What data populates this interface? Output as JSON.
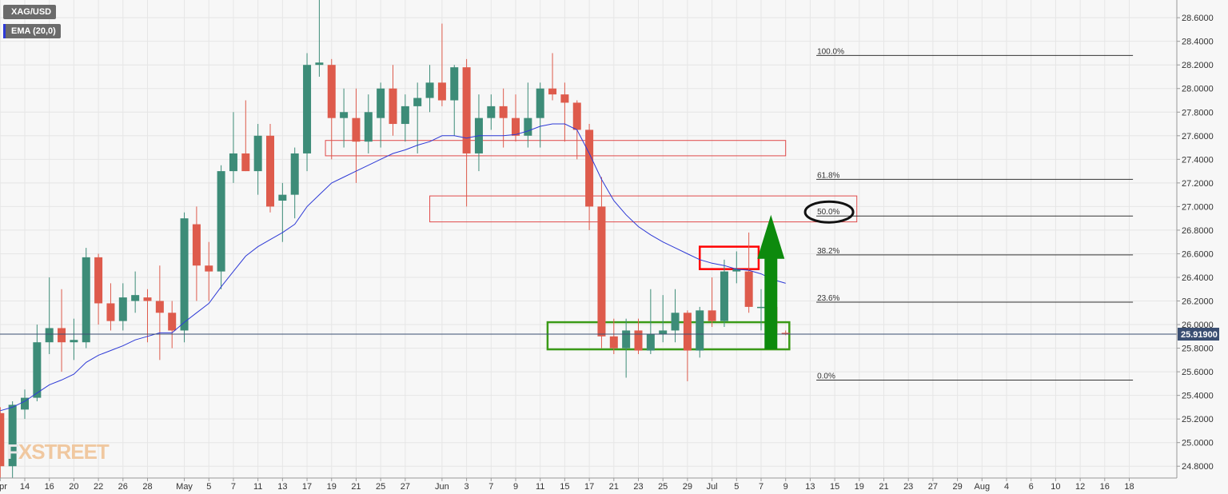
{
  "legend": {
    "symbol": "XAG/USD",
    "indicator": "EMA (20,0)"
  },
  "watermark": "FXSTREET",
  "chart_data": {
    "type": "candlestick",
    "symbol": "XAG/USD",
    "ylim": [
      24.7,
      28.75
    ],
    "y_ticks": [
      "28.6000",
      "28.4000",
      "28.2000",
      "28.0000",
      "27.8000",
      "27.6000",
      "27.4000",
      "27.2000",
      "27.0000",
      "26.8000",
      "26.6000",
      "26.4000",
      "26.2000",
      "26.0000",
      "25.8000",
      "25.6000",
      "25.4000",
      "25.2000",
      "25.0000",
      "24.8000"
    ],
    "x_ticks": [
      {
        "i": 0,
        "label": "Apr"
      },
      {
        "i": 2,
        "label": "14"
      },
      {
        "i": 4,
        "label": "16"
      },
      {
        "i": 6,
        "label": "20"
      },
      {
        "i": 8,
        "label": "22"
      },
      {
        "i": 10,
        "label": "26"
      },
      {
        "i": 12,
        "label": "28"
      },
      {
        "i": 15,
        "label": "May"
      },
      {
        "i": 17,
        "label": "5"
      },
      {
        "i": 19,
        "label": "7"
      },
      {
        "i": 21,
        "label": "11"
      },
      {
        "i": 23,
        "label": "13"
      },
      {
        "i": 25,
        "label": "17"
      },
      {
        "i": 27,
        "label": "19"
      },
      {
        "i": 29,
        "label": "21"
      },
      {
        "i": 31,
        "label": "25"
      },
      {
        "i": 33,
        "label": "27"
      },
      {
        "i": 36,
        "label": "Jun"
      },
      {
        "i": 38,
        "label": "3"
      },
      {
        "i": 40,
        "label": "7"
      },
      {
        "i": 42,
        "label": "9"
      },
      {
        "i": 44,
        "label": "11"
      },
      {
        "i": 46,
        "label": "15"
      },
      {
        "i": 48,
        "label": "17"
      },
      {
        "i": 50,
        "label": "21"
      },
      {
        "i": 52,
        "label": "23"
      },
      {
        "i": 54,
        "label": "25"
      },
      {
        "i": 56,
        "label": "29"
      },
      {
        "i": 58,
        "label": "Jul"
      },
      {
        "i": 60,
        "label": "5"
      },
      {
        "i": 62,
        "label": "7"
      },
      {
        "i": 64,
        "label": "9"
      },
      {
        "i": 66,
        "label": "13"
      },
      {
        "i": 68,
        "label": "15"
      },
      {
        "i": 70,
        "label": "19"
      },
      {
        "i": 72,
        "label": "21"
      },
      {
        "i": 74,
        "label": "23"
      },
      {
        "i": 76,
        "label": "27"
      },
      {
        "i": 78,
        "label": "29"
      },
      {
        "i": 80,
        "label": "Aug"
      },
      {
        "i": 82,
        "label": "4"
      },
      {
        "i": 84,
        "label": "6"
      },
      {
        "i": 86,
        "label": "10"
      },
      {
        "i": 88,
        "label": "12"
      },
      {
        "i": 90,
        "label": "16"
      },
      {
        "i": 92,
        "label": "18"
      }
    ],
    "candles": [
      {
        "i": 0,
        "o": 25.25,
        "h": 25.3,
        "l": 24.7,
        "c": 24.8
      },
      {
        "i": 1,
        "o": 24.8,
        "h": 25.35,
        "l": 24.7,
        "c": 25.32
      },
      {
        "i": 2,
        "o": 25.28,
        "h": 25.45,
        "l": 25.2,
        "c": 25.38
      },
      {
        "i": 3,
        "o": 25.38,
        "h": 26.0,
        "l": 25.35,
        "c": 25.85
      },
      {
        "i": 4,
        "o": 25.85,
        "h": 26.4,
        "l": 25.75,
        "c": 25.97
      },
      {
        "i": 5,
        "o": 25.97,
        "h": 26.3,
        "l": 25.6,
        "c": 25.85
      },
      {
        "i": 6,
        "o": 25.85,
        "h": 26.05,
        "l": 25.7,
        "c": 25.87
      },
      {
        "i": 7,
        "o": 25.85,
        "h": 26.65,
        "l": 25.8,
        "c": 26.57
      },
      {
        "i": 8,
        "o": 26.57,
        "h": 26.6,
        "l": 26.0,
        "c": 26.18
      },
      {
        "i": 9,
        "o": 26.18,
        "h": 26.35,
        "l": 25.95,
        "c": 26.03
      },
      {
        "i": 10,
        "o": 26.03,
        "h": 26.35,
        "l": 25.95,
        "c": 26.23
      },
      {
        "i": 11,
        "o": 26.2,
        "h": 26.45,
        "l": 26.1,
        "c": 26.25
      },
      {
        "i": 12,
        "o": 26.23,
        "h": 26.3,
        "l": 25.85,
        "c": 26.2
      },
      {
        "i": 13,
        "o": 26.2,
        "h": 26.5,
        "l": 25.7,
        "c": 26.1
      },
      {
        "i": 14,
        "o": 26.1,
        "h": 26.2,
        "l": 25.8,
        "c": 25.95
      },
      {
        "i": 15,
        "o": 25.95,
        "h": 26.95,
        "l": 25.85,
        "c": 26.9
      },
      {
        "i": 16,
        "o": 26.85,
        "h": 27.0,
        "l": 26.2,
        "c": 26.5
      },
      {
        "i": 17,
        "o": 26.5,
        "h": 26.7,
        "l": 26.2,
        "c": 26.45
      },
      {
        "i": 18,
        "o": 26.45,
        "h": 27.35,
        "l": 26.3,
        "c": 27.3
      },
      {
        "i": 19,
        "o": 27.3,
        "h": 27.8,
        "l": 27.2,
        "c": 27.45
      },
      {
        "i": 20,
        "o": 27.45,
        "h": 27.9,
        "l": 27.3,
        "c": 27.3
      },
      {
        "i": 21,
        "o": 27.3,
        "h": 27.7,
        "l": 27.1,
        "c": 27.6
      },
      {
        "i": 22,
        "o": 27.6,
        "h": 27.7,
        "l": 26.95,
        "c": 27.0
      },
      {
        "i": 23,
        "o": 27.05,
        "h": 27.2,
        "l": 26.7,
        "c": 27.1
      },
      {
        "i": 24,
        "o": 27.1,
        "h": 27.5,
        "l": 26.9,
        "c": 27.45
      },
      {
        "i": 25,
        "o": 27.45,
        "h": 28.3,
        "l": 27.3,
        "c": 28.2
      },
      {
        "i": 26,
        "o": 28.2,
        "h": 28.75,
        "l": 28.1,
        "c": 28.22
      },
      {
        "i": 27,
        "o": 28.2,
        "h": 28.25,
        "l": 27.4,
        "c": 27.75
      },
      {
        "i": 28,
        "o": 27.75,
        "h": 28.0,
        "l": 27.5,
        "c": 27.8
      },
      {
        "i": 29,
        "o": 27.75,
        "h": 28.0,
        "l": 27.2,
        "c": 27.55
      },
      {
        "i": 30,
        "o": 27.55,
        "h": 27.95,
        "l": 27.45,
        "c": 27.8
      },
      {
        "i": 31,
        "o": 27.75,
        "h": 28.05,
        "l": 27.5,
        "c": 28.0
      },
      {
        "i": 32,
        "o": 28.0,
        "h": 28.2,
        "l": 27.6,
        "c": 27.7
      },
      {
        "i": 33,
        "o": 27.7,
        "h": 27.95,
        "l": 27.55,
        "c": 27.85
      },
      {
        "i": 34,
        "o": 27.85,
        "h": 28.05,
        "l": 27.45,
        "c": 27.92
      },
      {
        "i": 35,
        "o": 27.92,
        "h": 28.2,
        "l": 27.8,
        "c": 28.05
      },
      {
        "i": 36,
        "o": 28.05,
        "h": 28.55,
        "l": 27.85,
        "c": 27.9
      },
      {
        "i": 37,
        "o": 27.9,
        "h": 28.2,
        "l": 27.6,
        "c": 28.18
      },
      {
        "i": 38,
        "o": 28.18,
        "h": 28.25,
        "l": 27.0,
        "c": 27.45
      },
      {
        "i": 39,
        "o": 27.45,
        "h": 27.95,
        "l": 27.3,
        "c": 27.75
      },
      {
        "i": 40,
        "o": 27.75,
        "h": 27.95,
        "l": 27.65,
        "c": 27.85
      },
      {
        "i": 41,
        "o": 27.85,
        "h": 28.0,
        "l": 27.5,
        "c": 27.75
      },
      {
        "i": 42,
        "o": 27.75,
        "h": 27.95,
        "l": 27.55,
        "c": 27.6
      },
      {
        "i": 43,
        "o": 27.6,
        "h": 28.05,
        "l": 27.5,
        "c": 27.75
      },
      {
        "i": 44,
        "o": 27.75,
        "h": 28.05,
        "l": 27.5,
        "c": 28.0
      },
      {
        "i": 45,
        "o": 28.0,
        "h": 28.3,
        "l": 27.9,
        "c": 27.95
      },
      {
        "i": 46,
        "o": 27.95,
        "h": 28.05,
        "l": 27.55,
        "c": 27.88
      },
      {
        "i": 47,
        "o": 27.88,
        "h": 27.9,
        "l": 27.4,
        "c": 27.65
      },
      {
        "i": 48,
        "o": 27.65,
        "h": 27.7,
        "l": 26.8,
        "c": 27.0
      },
      {
        "i": 49,
        "o": 27.0,
        "h": 27.25,
        "l": 25.8,
        "c": 25.9
      },
      {
        "i": 50,
        "o": 25.9,
        "h": 26.05,
        "l": 25.75,
        "c": 25.8
      },
      {
        "i": 51,
        "o": 25.8,
        "h": 26.05,
        "l": 25.55,
        "c": 25.95
      },
      {
        "i": 52,
        "o": 25.95,
        "h": 26.05,
        "l": 25.75,
        "c": 25.78
      },
      {
        "i": 53,
        "o": 25.78,
        "h": 26.3,
        "l": 25.75,
        "c": 25.92
      },
      {
        "i": 54,
        "o": 25.92,
        "h": 26.25,
        "l": 25.85,
        "c": 25.95
      },
      {
        "i": 55,
        "o": 25.95,
        "h": 26.3,
        "l": 25.85,
        "c": 26.1
      },
      {
        "i": 56,
        "o": 26.1,
        "h": 26.12,
        "l": 25.52,
        "c": 25.78
      },
      {
        "i": 57,
        "o": 25.78,
        "h": 26.15,
        "l": 25.72,
        "c": 26.12
      },
      {
        "i": 58,
        "o": 26.12,
        "h": 26.4,
        "l": 25.98,
        "c": 26.03
      },
      {
        "i": 59,
        "o": 26.03,
        "h": 26.55,
        "l": 25.98,
        "c": 26.45
      },
      {
        "i": 60,
        "o": 26.45,
        "h": 26.62,
        "l": 26.35,
        "c": 26.47
      },
      {
        "i": 61,
        "o": 26.45,
        "h": 26.78,
        "l": 26.1,
        "c": 26.15
      },
      {
        "i": 62,
        "o": 26.15,
        "h": 26.3,
        "l": 25.95,
        "c": 26.15
      },
      {
        "i": 63,
        "o": 26.15,
        "h": 26.22,
        "l": 25.8,
        "c": 25.93
      },
      {
        "i": 64,
        "o": 25.93,
        "h": 25.95,
        "l": 25.91,
        "c": 25.919
      }
    ],
    "ema": {
      "name": "EMA (20,0)",
      "points": [
        [
          0,
          25.27
        ],
        [
          1,
          25.3
        ],
        [
          2,
          25.35
        ],
        [
          3,
          25.42
        ],
        [
          4,
          25.49
        ],
        [
          5,
          25.53
        ],
        [
          6,
          25.58
        ],
        [
          7,
          25.68
        ],
        [
          8,
          25.74
        ],
        [
          9,
          25.78
        ],
        [
          10,
          25.82
        ],
        [
          11,
          25.87
        ],
        [
          12,
          25.9
        ],
        [
          13,
          25.93
        ],
        [
          14,
          25.93
        ],
        [
          15,
          26.02
        ],
        [
          16,
          26.1
        ],
        [
          17,
          26.18
        ],
        [
          18,
          26.32
        ],
        [
          19,
          26.45
        ],
        [
          20,
          26.58
        ],
        [
          21,
          26.66
        ],
        [
          22,
          26.72
        ],
        [
          23,
          26.78
        ],
        [
          24,
          26.85
        ],
        [
          25,
          27.0
        ],
        [
          26,
          27.1
        ],
        [
          27,
          27.2
        ],
        [
          28,
          27.25
        ],
        [
          29,
          27.3
        ],
        [
          30,
          27.35
        ],
        [
          31,
          27.4
        ],
        [
          32,
          27.45
        ],
        [
          33,
          27.48
        ],
        [
          34,
          27.52
        ],
        [
          35,
          27.55
        ],
        [
          36,
          27.6
        ],
        [
          37,
          27.6
        ],
        [
          38,
          27.58
        ],
        [
          39,
          27.6
        ],
        [
          40,
          27.6
        ],
        [
          41,
          27.6
        ],
        [
          42,
          27.61
        ],
        [
          43,
          27.64
        ],
        [
          44,
          27.68
        ],
        [
          45,
          27.7
        ],
        [
          46,
          27.7
        ],
        [
          47,
          27.65
        ],
        [
          48,
          27.45
        ],
        [
          49,
          27.23
        ],
        [
          50,
          27.05
        ],
        [
          51,
          26.93
        ],
        [
          52,
          26.83
        ],
        [
          53,
          26.76
        ],
        [
          54,
          26.7
        ],
        [
          55,
          26.65
        ],
        [
          56,
          26.6
        ],
        [
          57,
          26.55
        ],
        [
          58,
          26.52
        ],
        [
          59,
          26.5
        ],
        [
          60,
          26.47
        ],
        [
          61,
          26.46
        ],
        [
          62,
          26.43
        ],
        [
          63,
          26.38
        ],
        [
          64,
          26.35
        ]
      ]
    },
    "fibonacci": {
      "x_start": 66.5,
      "x_end": 92.3,
      "levels": [
        {
          "label": "100.0%",
          "value": 28.28
        },
        {
          "label": "61.8%",
          "value": 27.23
        },
        {
          "label": "50.0%",
          "value": 26.92
        },
        {
          "label": "38.2%",
          "value": 26.59
        },
        {
          "label": "23.6%",
          "value": 26.19
        },
        {
          "label": "0.0%",
          "value": 25.53
        }
      ]
    },
    "zones": [
      {
        "color": "#e04a4a",
        "x0": 26.5,
        "x1": 64.0,
        "y0": 27.43,
        "y1": 27.56
      },
      {
        "color": "#e04a4a",
        "x0": 35.0,
        "x1": 69.8,
        "y0": 26.87,
        "y1": 27.09
      },
      {
        "color": "#ff0000",
        "x0": 57.0,
        "x1": 61.8,
        "y0": 26.47,
        "y1": 26.66
      },
      {
        "color": "#3a9a17",
        "x0": 44.6,
        "x1": 64.3,
        "y0": 25.79,
        "y1": 26.02
      }
    ],
    "highlight": {
      "label": "50.0%"
    },
    "arrow": {
      "color": "#0d8a0d",
      "x": 62.8,
      "y_from": 25.79,
      "y_to": 26.93
    },
    "current_price": {
      "value": 25.919,
      "label": "25.91900"
    }
  }
}
